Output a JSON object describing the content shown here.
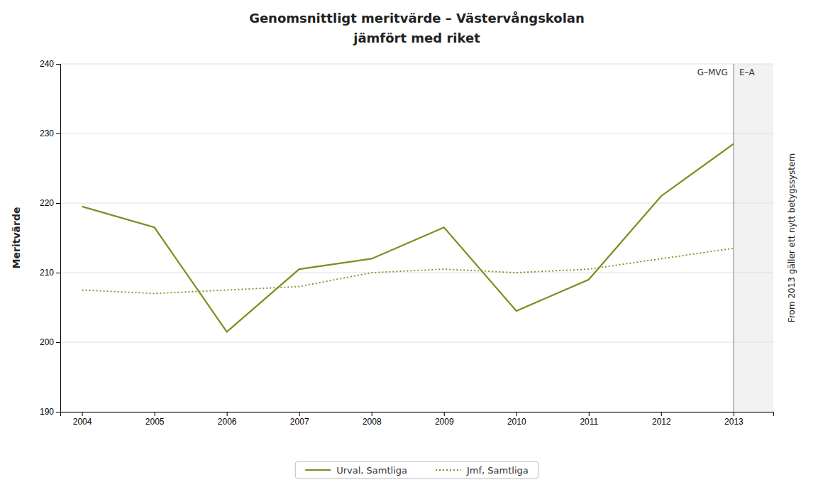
{
  "chart_data": {
    "type": "line",
    "title": "Genomsnittligt meritvärde – Västervångskolan",
    "subtitle": "jämfört med riket",
    "y_label": "Meritvärde",
    "y_label_right": "From 2013 gäller ett nytt betygssystem",
    "x": [
      2004,
      2005,
      2006,
      2007,
      2008,
      2009,
      2010,
      2011,
      2012,
      2013
    ],
    "xlim": [
      2003.7,
      2013.55
    ],
    "xticks": [
      2004,
      2005,
      2006,
      2007,
      2008,
      2009,
      2010,
      2011,
      2012,
      2013
    ],
    "ylim": [
      190,
      240
    ],
    "yticks": [
      190,
      200,
      210,
      220,
      230,
      240
    ],
    "series": [
      {
        "name": "Urval, Samtliga",
        "color": "#7f8c1c",
        "line_style": "solid",
        "values": [
          219.5,
          216.5,
          201.5,
          210.5,
          212.0,
          216.5,
          204.5,
          209.0,
          221.0,
          228.5
        ]
      },
      {
        "name": "Jmf, Samtliga",
        "color": "#7f8c1c",
        "line_style": "dotted",
        "values": [
          207.5,
          207.0,
          207.5,
          208.0,
          210.0,
          210.5,
          210.0,
          210.5,
          212.0,
          213.5
        ]
      }
    ],
    "vlines": [
      {
        "x": 2013,
        "label_left": "G–MVG",
        "label_right": "E–A"
      }
    ],
    "grid": true,
    "legend": "bottom"
  }
}
